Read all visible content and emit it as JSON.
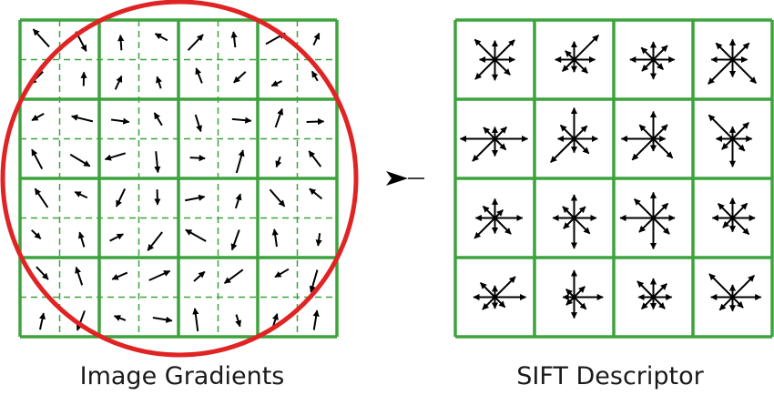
{
  "left_panel": {
    "caption": "Image Gradients"
  },
  "right_panel": {
    "caption": "SIFT Descriptor"
  },
  "colors": {
    "grid": "#3da33d",
    "circle": "#e02424",
    "arrow": "#000000"
  },
  "icons": {
    "transition": "arrow-right-icon"
  }
}
